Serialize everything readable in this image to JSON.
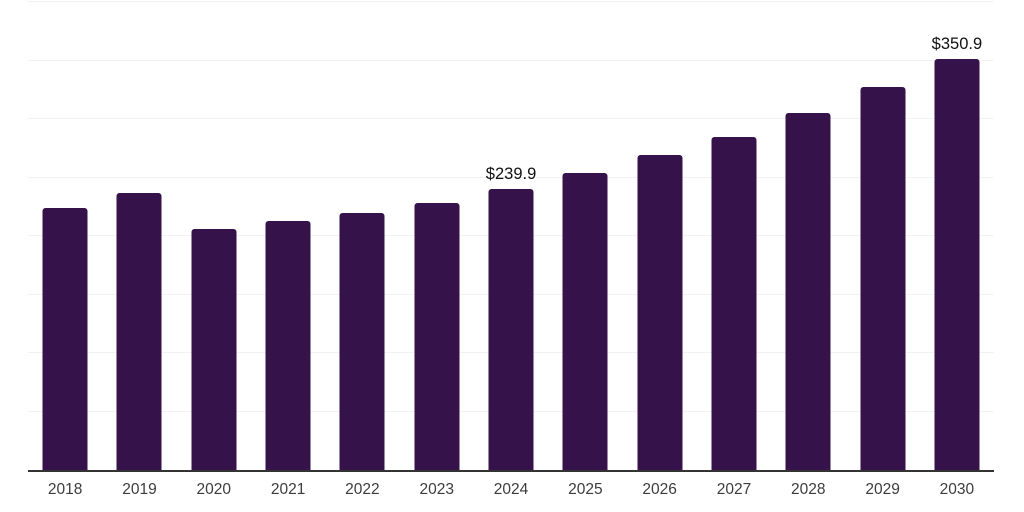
{
  "chart_data": {
    "type": "bar",
    "title": "",
    "xlabel": "",
    "ylabel": "",
    "categories": [
      "2018",
      "2019",
      "2020",
      "2021",
      "2022",
      "2023",
      "2024",
      "2025",
      "2026",
      "2027",
      "2028",
      "2029",
      "2030"
    ],
    "values": [
      224,
      237,
      206,
      213,
      220,
      228.5,
      239.9,
      253.5,
      269.5,
      284.5,
      305,
      327,
      350.9
    ],
    "value_labels": {
      "2024": "$239.9",
      "2030": "$350.9"
    },
    "ylim": [
      0,
      400
    ],
    "grid_step": 50,
    "grid": true,
    "legend": false,
    "colors": {
      "bar": "#351249",
      "gridline": "#f2f2f2",
      "axis": "#333333",
      "tick_label": "#3c3c3c",
      "value_label": "#111111",
      "background": "#ffffff"
    }
  }
}
